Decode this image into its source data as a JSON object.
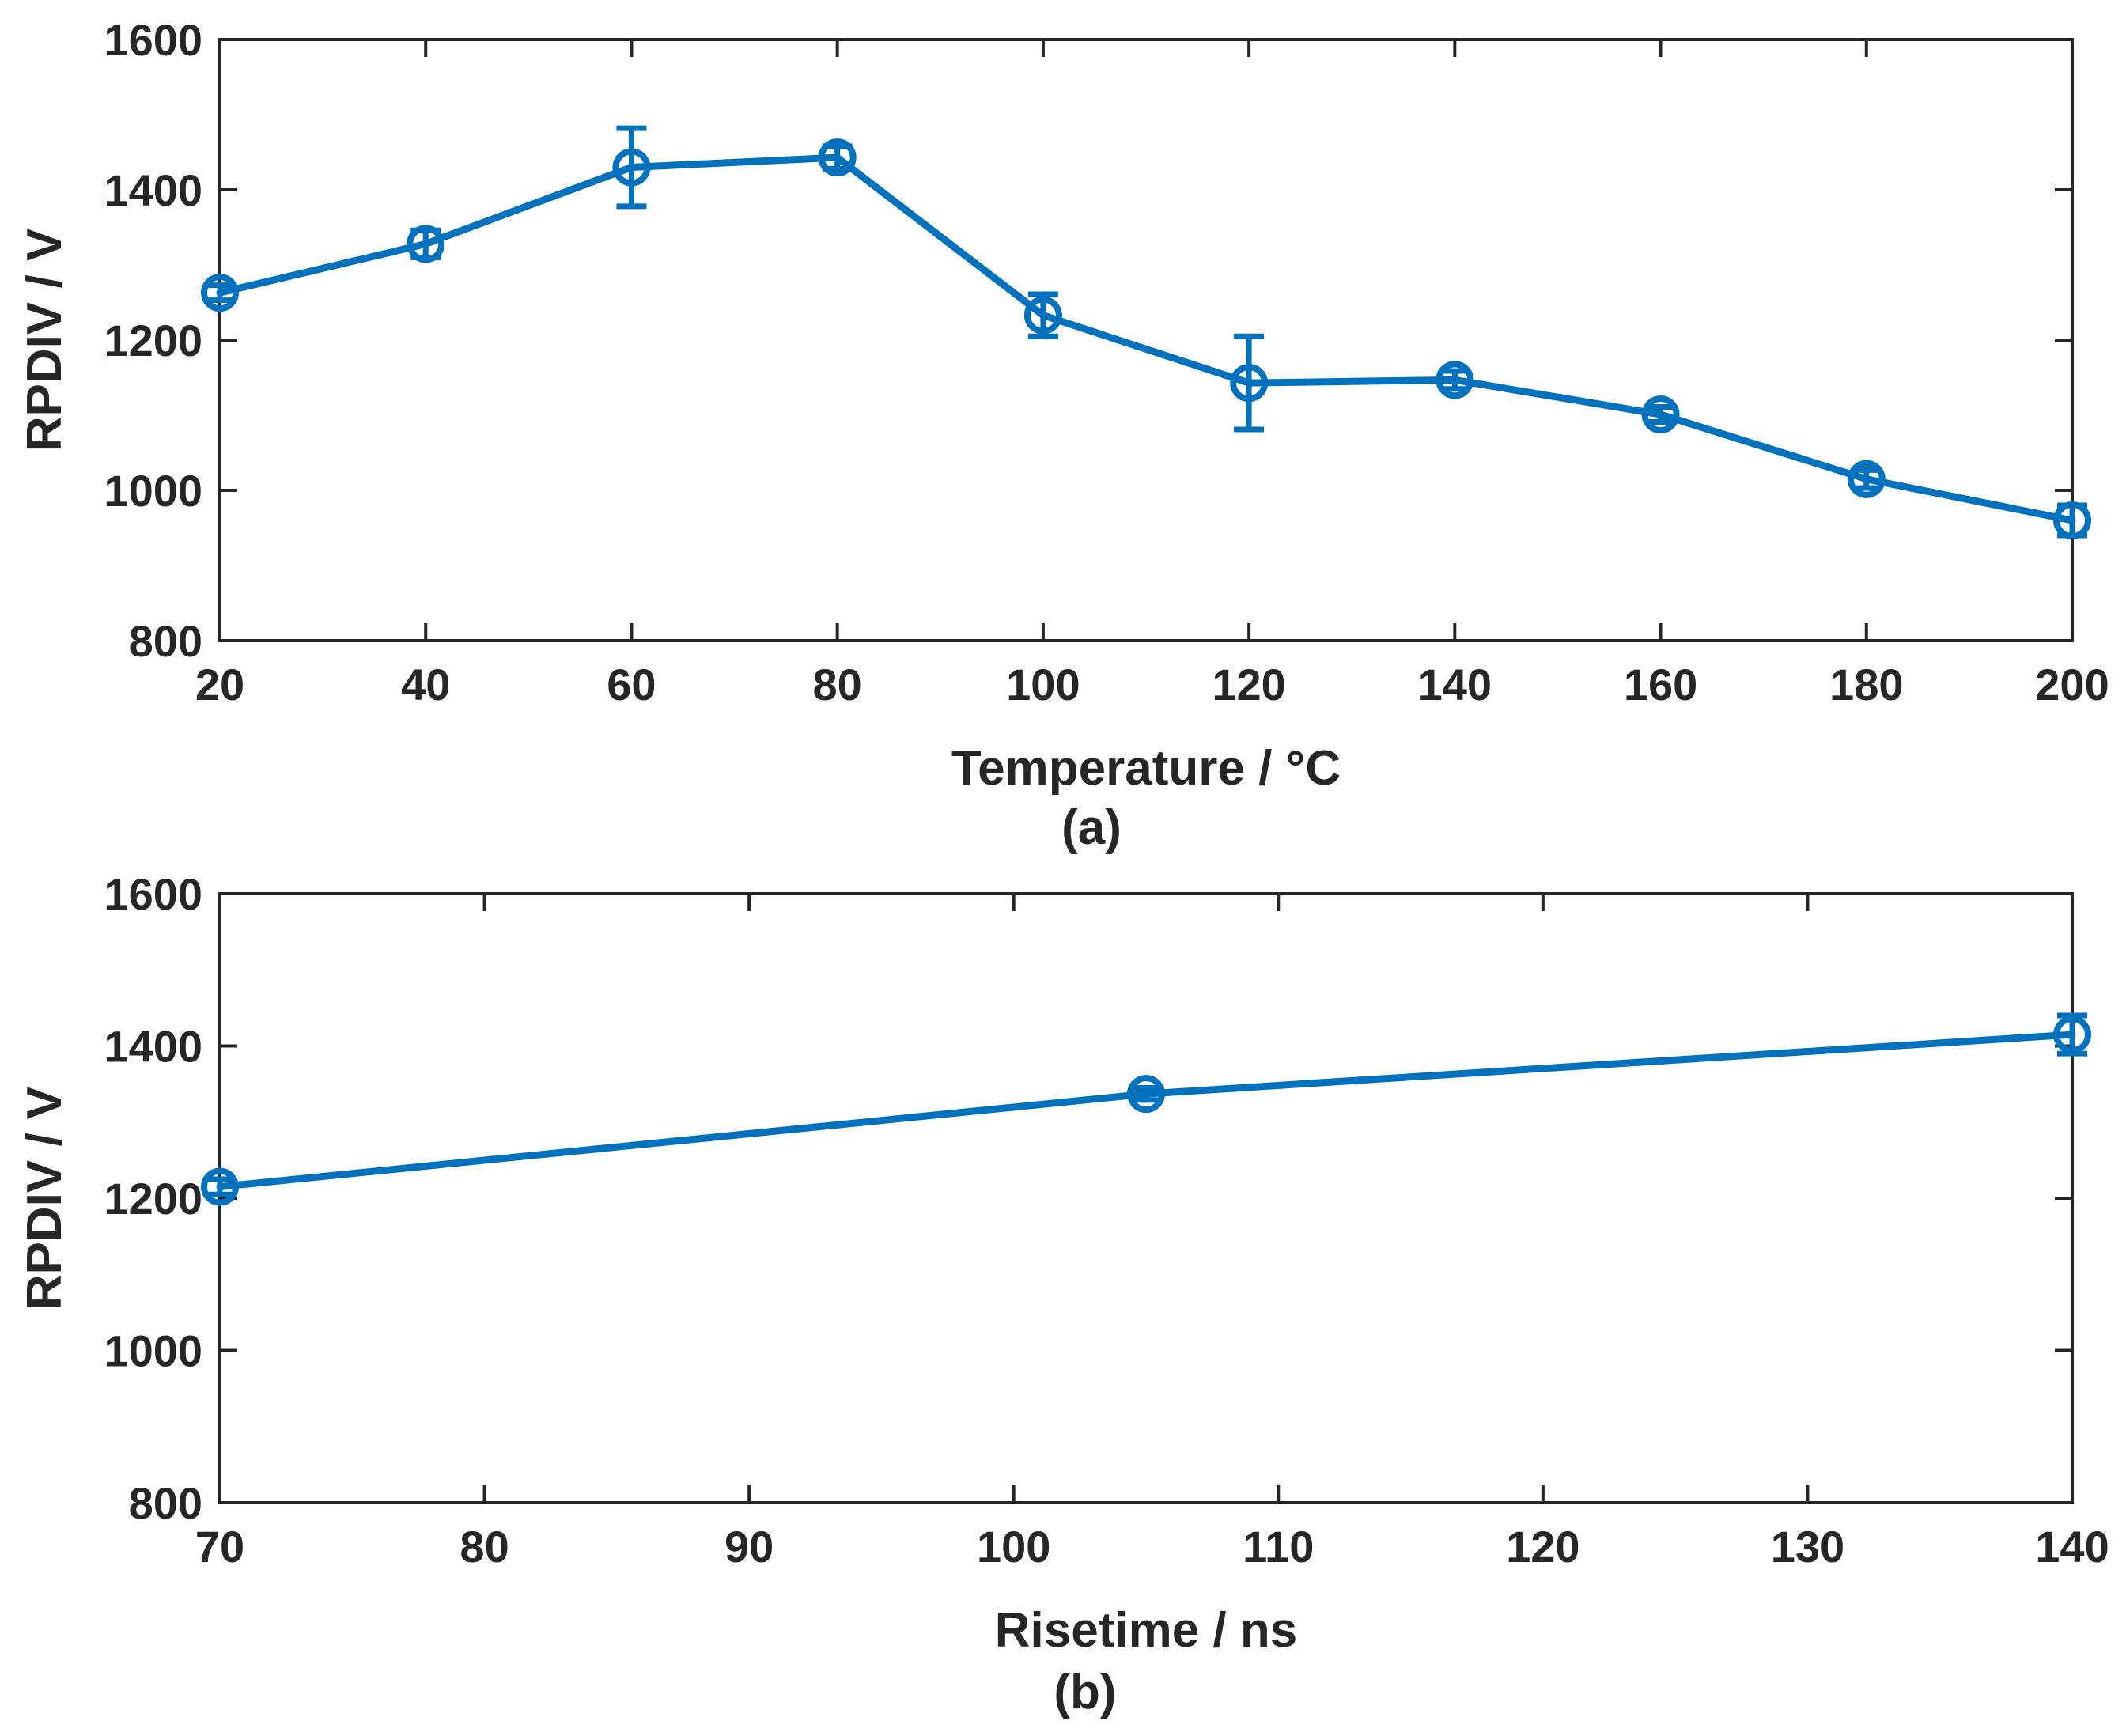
{
  "colors": {
    "series": "#0072BD",
    "axis": "#262626",
    "background": "#ffffff"
  },
  "chart_data": [
    {
      "type": "line",
      "panel_label": "(a)",
      "xlabel": "Temperature / °C",
      "ylabel": "RPDIV / V",
      "xlim": [
        20,
        200
      ],
      "ylim": [
        800,
        1600
      ],
      "xticks": [
        20,
        40,
        60,
        80,
        100,
        120,
        140,
        160,
        180,
        200
      ],
      "yticks": [
        800,
        1000,
        1200,
        1400,
        1600
      ],
      "grid": false,
      "series": [
        {
          "name": "RPDIV",
          "x": [
            20,
            40,
            60,
            80,
            100,
            120,
            140,
            160,
            180,
            200
          ],
          "y": [
            1263,
            1328,
            1430,
            1443,
            1233,
            1143,
            1147,
            1101,
            1015,
            960
          ],
          "error": [
            10,
            18,
            52,
            15,
            28,
            62,
            12,
            10,
            12,
            20
          ],
          "marker": "circle-errorbar"
        }
      ]
    },
    {
      "type": "line",
      "panel_label": "(b)",
      "xlabel": "Risetime / ns",
      "ylabel": "RPDIV / V",
      "xlim": [
        70,
        140
      ],
      "ylim": [
        800,
        1600
      ],
      "xticks": [
        70,
        80,
        90,
        100,
        110,
        120,
        130,
        140
      ],
      "yticks": [
        800,
        1000,
        1200,
        1400,
        1600
      ],
      "grid": false,
      "series": [
        {
          "name": "RPDIV",
          "x": [
            70,
            105,
            140
          ],
          "y": [
            1215,
            1337,
            1415
          ],
          "error": [
            10,
            8,
            25
          ],
          "marker": "circle-errorbar"
        }
      ]
    }
  ]
}
